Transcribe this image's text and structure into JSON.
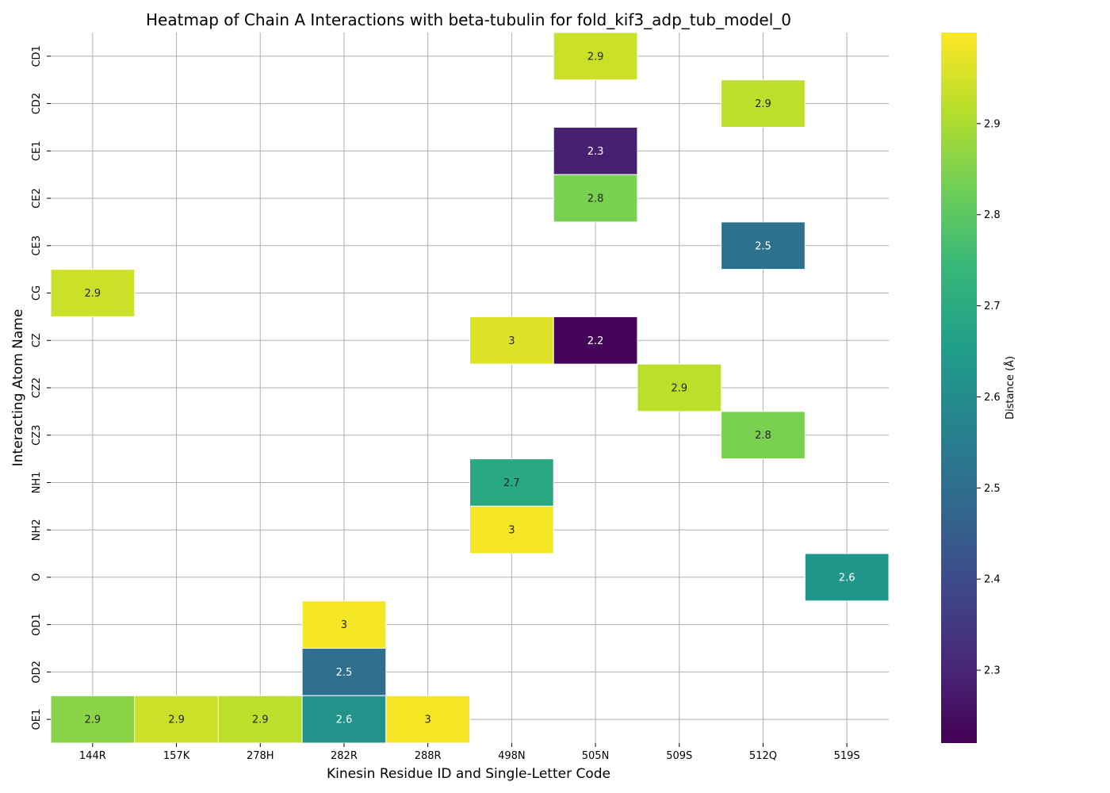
{
  "chart_data": {
    "type": "heatmap",
    "title": "Heatmap of Chain A Interactions with beta-tubulin for fold_kif3_adp_tub_model_0",
    "xlabel": "Kinesin Residue ID and Single-Letter Code",
    "ylabel": "Interacting Atom Name",
    "x_categories": [
      "144R",
      "157K",
      "278H",
      "282R",
      "288R",
      "498N",
      "505N",
      "509S",
      "512Q",
      "519S"
    ],
    "y_categories": [
      "CD1",
      "CD2",
      "CE1",
      "CE2",
      "CE3",
      "CG",
      "CZ",
      "CZ2",
      "CZ3",
      "NH1",
      "NH2",
      "O",
      "OD1",
      "OD2",
      "OE1"
    ],
    "cells": [
      {
        "x": "505N",
        "y": "CD1",
        "value": 2.94,
        "label": "2.9"
      },
      {
        "x": "512Q",
        "y": "CD2",
        "value": 2.92,
        "label": "2.9"
      },
      {
        "x": "505N",
        "y": "CE1",
        "value": 2.29,
        "label": "2.3"
      },
      {
        "x": "505N",
        "y": "CE2",
        "value": 2.84,
        "label": "2.8"
      },
      {
        "x": "512Q",
        "y": "CE3",
        "value": 2.51,
        "label": "2.5"
      },
      {
        "x": "144R",
        "y": "CG",
        "value": 2.94,
        "label": "2.9"
      },
      {
        "x": "498N",
        "y": "CZ",
        "value": 2.96,
        "label": "3"
      },
      {
        "x": "505N",
        "y": "CZ",
        "value": 2.23,
        "label": "2.2"
      },
      {
        "x": "509S",
        "y": "CZ2",
        "value": 2.92,
        "label": "2.9"
      },
      {
        "x": "512Q",
        "y": "CZ3",
        "value": 2.84,
        "label": "2.8"
      },
      {
        "x": "498N",
        "y": "NH1",
        "value": 2.69,
        "label": "2.7"
      },
      {
        "x": "498N",
        "y": "NH2",
        "value": 2.99,
        "label": "3"
      },
      {
        "x": "519S",
        "y": "O",
        "value": 2.63,
        "label": "2.6"
      },
      {
        "x": "282R",
        "y": "OD1",
        "value": 2.99,
        "label": "3"
      },
      {
        "x": "282R",
        "y": "OD2",
        "value": 2.5,
        "label": "2.5"
      },
      {
        "x": "144R",
        "y": "OE1",
        "value": 2.86,
        "label": "2.9"
      },
      {
        "x": "157K",
        "y": "OE1",
        "value": 2.94,
        "label": "2.9"
      },
      {
        "x": "278H",
        "y": "OE1",
        "value": 2.92,
        "label": "2.9"
      },
      {
        "x": "282R",
        "y": "OE1",
        "value": 2.62,
        "label": "2.6"
      },
      {
        "x": "288R",
        "y": "OE1",
        "value": 2.99,
        "label": "3"
      }
    ],
    "colorbar": {
      "label": "Distance (Å)",
      "colormap": "viridis",
      "range": [
        2.22,
        3.0
      ],
      "ticks": [
        2.3,
        2.4,
        2.5,
        2.6,
        2.7,
        2.8,
        2.9
      ]
    },
    "grid": true
  }
}
